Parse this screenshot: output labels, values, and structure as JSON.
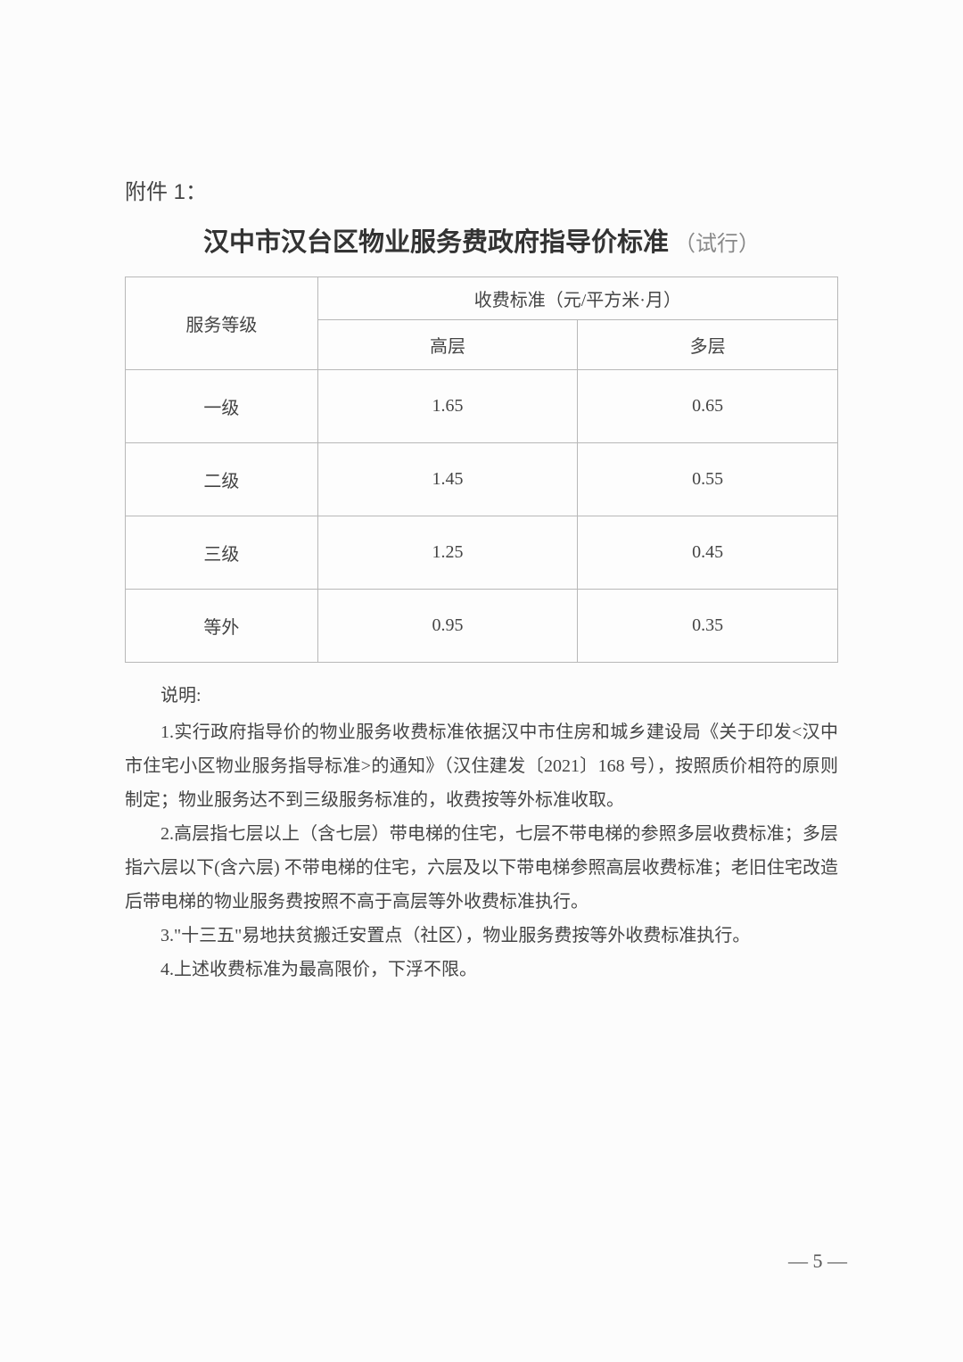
{
  "attachment_label": "附件 1：",
  "title_main": "汉中市汉台区物业服务费政府指导价标准",
  "title_suffix": "（试行）",
  "table": {
    "col_service_level": "服务等级",
    "col_fee_standard": "收费标准（元/平方米·月）",
    "col_high_rise": "高层",
    "col_multi_storey": "多层",
    "rows": [
      {
        "level": "一级",
        "high": "1.65",
        "multi": "0.65"
      },
      {
        "level": "二级",
        "high": "1.45",
        "multi": "0.55"
      },
      {
        "level": "三级",
        "high": "1.25",
        "multi": "0.45"
      },
      {
        "level": "等外",
        "high": "0.95",
        "multi": "0.35"
      }
    ]
  },
  "notes_label": "说明:",
  "notes": {
    "n1": "1.实行政府指导价的物业服务收费标准依据汉中市住房和城乡建设局《关于印发<汉中市住宅小区物业服务指导标准>的通知》（汉住建发〔2021〕168 号），按照质价相符的原则制定；物业服务达不到三级服务标准的，收费按等外标准收取。",
    "n2": "2.高层指七层以上（含七层）带电梯的住宅，七层不带电梯的参照多层收费标准；多层指六层以下(含六层) 不带电梯的住宅，六层及以下带电梯参照高层收费标准；老旧住宅改造后带电梯的物业服务费按照不高于高层等外收费标准执行。",
    "n3": "3.\"十三五\"易地扶贫搬迁安置点（社区），物业服务费按等外收费标准执行。",
    "n4": "4.上述收费标准为最高限价，下浮不限。"
  },
  "page_number": "— 5 —"
}
